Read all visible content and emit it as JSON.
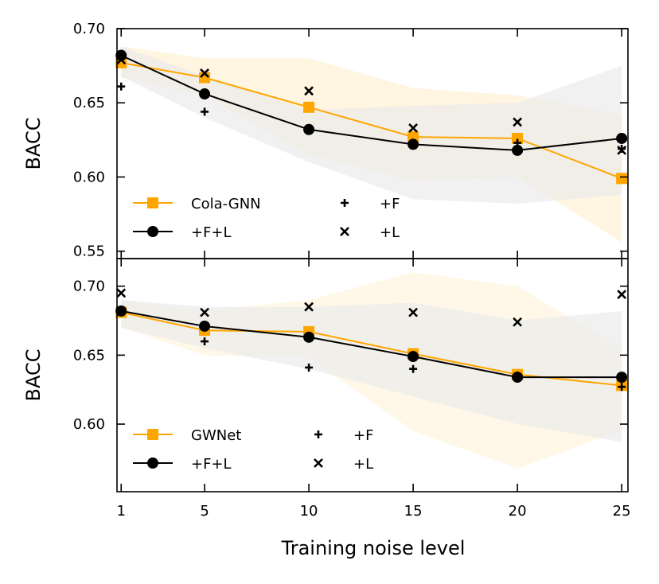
{
  "chart_data": [
    {
      "type": "line",
      "ylabel": "BACC",
      "xlabel": "",
      "x": [
        1,
        5,
        10,
        15,
        20,
        25
      ],
      "xlim": [
        0.8,
        25.3
      ],
      "ylim": [
        0.545,
        0.7
      ],
      "yticks": [
        0.55,
        0.6,
        0.65,
        0.7
      ],
      "ytick_labels": [
        "0.55",
        "0.60",
        "0.65",
        "0.70"
      ],
      "legend_position": "lower-left",
      "series": [
        {
          "name": "Cola-GNN",
          "marker": "square",
          "color": "#FFA500",
          "values": [
            0.677,
            0.667,
            0.647,
            0.627,
            0.626,
            0.599
          ],
          "band_lower": [
            0.667,
            0.655,
            0.615,
            0.598,
            0.6,
            0.556
          ],
          "band_upper": [
            0.688,
            0.68,
            0.68,
            0.66,
            0.655,
            0.642
          ]
        },
        {
          "name": "+F+L",
          "marker": "circle",
          "color": "#000000",
          "values": [
            0.682,
            0.656,
            0.632,
            0.622,
            0.618,
            0.626
          ],
          "band_lower": [
            0.668,
            0.64,
            0.61,
            0.585,
            0.582,
            0.588
          ],
          "band_upper": [
            0.688,
            0.668,
            0.645,
            0.648,
            0.65,
            0.675
          ]
        },
        {
          "name": "+F",
          "marker": "plus",
          "color": "#000000",
          "values": [
            0.661,
            0.644,
            null,
            null,
            0.623,
            0.619
          ]
        },
        {
          "name": "+L",
          "marker": "x",
          "color": "#000000",
          "values": [
            0.679,
            0.67,
            0.658,
            0.633,
            0.637,
            0.618
          ]
        }
      ],
      "band_colors": {
        "orange": "#FFF2D6",
        "gray": "#EBEBEB"
      }
    },
    {
      "type": "line",
      "ylabel": "BACC",
      "xlabel": "Training noise level",
      "x": [
        1,
        5,
        10,
        15,
        20,
        25
      ],
      "xlim": [
        0.8,
        25.3
      ],
      "ylim": [
        0.551,
        0.72
      ],
      "yticks": [
        0.6,
        0.65,
        0.7
      ],
      "ytick_labels": [
        "0.60",
        "0.65",
        "0.70"
      ],
      "xticks": [
        1,
        5,
        10,
        15,
        20,
        25
      ],
      "xtick_labels": [
        "1",
        "5",
        "10",
        "15",
        "20",
        "25"
      ],
      "legend_position": "lower-left",
      "series": [
        {
          "name": "GWNet",
          "marker": "square",
          "color": "#FFA500",
          "values": [
            0.681,
            0.668,
            0.667,
            0.651,
            0.636,
            0.628
          ],
          "band_lower": [
            0.67,
            0.65,
            0.648,
            0.595,
            0.568,
            0.595
          ],
          "band_upper": [
            0.69,
            0.682,
            0.69,
            0.71,
            0.7,
            0.655
          ]
        },
        {
          "name": "+F+L",
          "marker": "circle",
          "color": "#000000",
          "values": [
            0.682,
            0.671,
            0.663,
            0.649,
            0.634,
            0.634
          ],
          "band_lower": [
            0.67,
            0.655,
            0.64,
            0.62,
            0.6,
            0.587
          ],
          "band_upper": [
            0.69,
            0.685,
            0.685,
            0.688,
            0.675,
            0.682
          ]
        },
        {
          "name": "+F",
          "marker": "plus",
          "color": "#000000",
          "values": [
            null,
            0.66,
            0.641,
            0.64,
            0.635,
            0.627
          ]
        },
        {
          "name": "+L",
          "marker": "x",
          "color": "#000000",
          "values": [
            0.695,
            0.681,
            0.685,
            0.681,
            0.674,
            0.694
          ]
        }
      ],
      "band_colors": {
        "orange": "#FFF6E0",
        "gray": "#EBEBEB"
      }
    }
  ]
}
